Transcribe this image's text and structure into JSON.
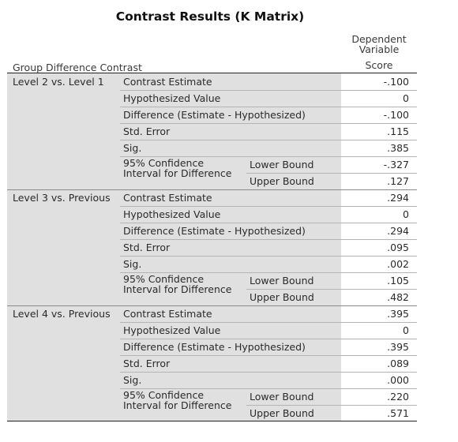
{
  "title": "Contrast Results (K Matrix)",
  "columns": {
    "dependent_line1": "Dependent",
    "dependent_line2": "Variable",
    "score": "Score",
    "row_header": "Group Difference Contrast"
  },
  "labels": {
    "contrast_estimate": "Contrast Estimate",
    "hypothesized_value": "Hypothesized Value",
    "difference": "Difference (Estimate - Hypothesized)",
    "std_error": "Std. Error",
    "sig": "Sig.",
    "ci_line1": "95% Confidence",
    "ci_line2": "Interval for Difference",
    "lower_bound": "Lower Bound",
    "upper_bound": "Upper Bound"
  },
  "groups": [
    {
      "label": "Level 2 vs. Level 1",
      "contrast_estimate": "-.100",
      "hypothesized_value": "0",
      "difference": "-.100",
      "std_error": ".115",
      "sig": ".385",
      "lower_bound": "-.327",
      "upper_bound": ".127"
    },
    {
      "label": "Level 3 vs. Previous",
      "contrast_estimate": ".294",
      "hypothesized_value": "0",
      "difference": ".294",
      "std_error": ".095",
      "sig": ".002",
      "lower_bound": ".105",
      "upper_bound": ".482"
    },
    {
      "label": "Level 4 vs. Previous",
      "contrast_estimate": ".395",
      "hypothesized_value": "0",
      "difference": ".395",
      "std_error": ".089",
      "sig": ".000",
      "lower_bound": ".220",
      "upper_bound": ".571"
    }
  ]
}
